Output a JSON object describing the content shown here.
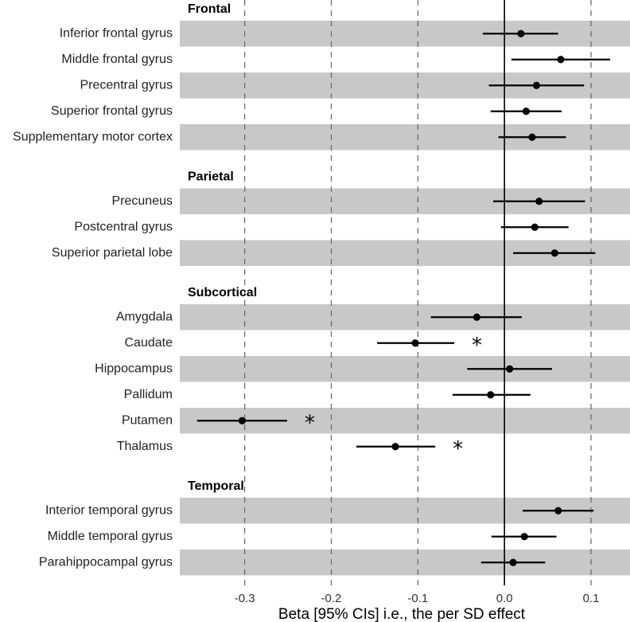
{
  "chart_data": {
    "type": "forest",
    "xlabel": "Beta [95% CIs] i.e., the per SD effect",
    "xlim": [
      -0.375,
      0.145
    ],
    "xticks": [
      -0.3,
      -0.2,
      -0.1,
      0.0,
      0.1
    ],
    "xtick_labels": [
      "-0.3",
      "-0.2",
      "-0.1",
      "0.0",
      "0.1"
    ],
    "reference_line": 0,
    "significance_marker": "*",
    "groups": [
      {
        "name": "Frontal",
        "items": [
          {
            "label": "Inferior frontal gyrus",
            "beta": 0.019,
            "lower": -0.025,
            "upper": 0.062,
            "significant": false
          },
          {
            "label": "Middle frontal gyrus",
            "beta": 0.065,
            "lower": 0.008,
            "upper": 0.122,
            "significant": false
          },
          {
            "label": "Precentral gyrus",
            "beta": 0.037,
            "lower": -0.018,
            "upper": 0.092,
            "significant": false
          },
          {
            "label": "Superior frontal gyrus",
            "beta": 0.025,
            "lower": -0.016,
            "upper": 0.066,
            "significant": false
          },
          {
            "label": "Supplementary motor cortex",
            "beta": 0.032,
            "lower": -0.007,
            "upper": 0.071,
            "significant": false
          }
        ]
      },
      {
        "name": "Parietal",
        "items": [
          {
            "label": "Precuneus",
            "beta": 0.04,
            "lower": -0.013,
            "upper": 0.093,
            "significant": false
          },
          {
            "label": "Postcentral gyrus",
            "beta": 0.035,
            "lower": -0.004,
            "upper": 0.074,
            "significant": false
          },
          {
            "label": "Superior parietal lobe",
            "beta": 0.058,
            "lower": 0.01,
            "upper": 0.105,
            "significant": false
          }
        ]
      },
      {
        "name": "Subcortical",
        "items": [
          {
            "label": "Amygdala",
            "beta": -0.032,
            "lower": -0.085,
            "upper": 0.02,
            "significant": false
          },
          {
            "label": "Caudate",
            "beta": -0.103,
            "lower": -0.147,
            "upper": -0.058,
            "significant": true
          },
          {
            "label": "Hippocampus",
            "beta": 0.006,
            "lower": -0.043,
            "upper": 0.055,
            "significant": false
          },
          {
            "label": "Pallidum",
            "beta": -0.016,
            "lower": -0.06,
            "upper": 0.03,
            "significant": false
          },
          {
            "label": "Putamen",
            "beta": -0.303,
            "lower": -0.355,
            "upper": -0.251,
            "significant": true
          },
          {
            "label": "Thalamus",
            "beta": -0.126,
            "lower": -0.171,
            "upper": -0.08,
            "significant": true
          }
        ]
      },
      {
        "name": "Temporal",
        "items": [
          {
            "label": "Interior temporal gyrus",
            "beta": 0.062,
            "lower": 0.021,
            "upper": 0.103,
            "significant": false
          },
          {
            "label": "Middle temporal gyrus",
            "beta": 0.023,
            "lower": -0.015,
            "upper": 0.06,
            "significant": false
          },
          {
            "label": "Parahippocampal gyrus",
            "beta": 0.01,
            "lower": -0.027,
            "upper": 0.047,
            "significant": false
          }
        ]
      }
    ]
  },
  "colors": {
    "band": "#c8c8c8",
    "point": "#000000",
    "line": "#000000",
    "grid": "#666666"
  }
}
